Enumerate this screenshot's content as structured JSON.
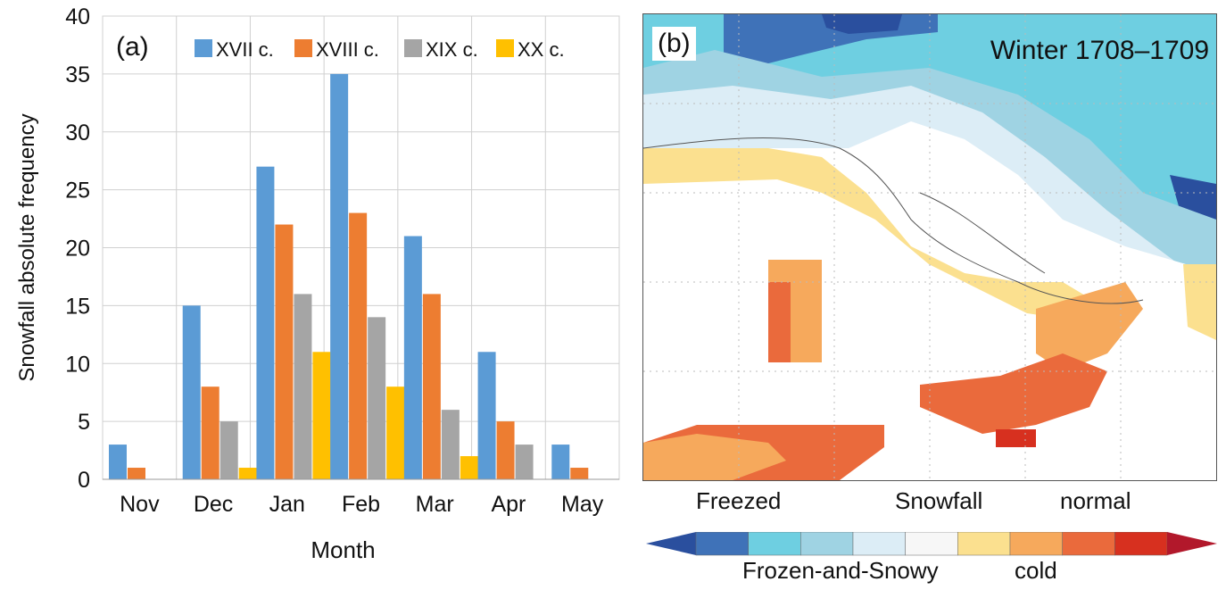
{
  "chart_data": [
    {
      "type": "bar",
      "panel_label": "(a)",
      "title": "",
      "xlabel": "Month",
      "ylabel": "Snowfall absolute frequency",
      "categories": [
        "Nov",
        "Dec",
        "Jan",
        "Feb",
        "Mar",
        "Apr",
        "May"
      ],
      "ylim": [
        0,
        40
      ],
      "yticks": [
        0,
        5,
        10,
        15,
        20,
        25,
        30,
        35,
        40
      ],
      "grid": true,
      "legend_position": "top",
      "series": [
        {
          "name": "XVII c.",
          "color": "#5b9bd5",
          "values": [
            3,
            15,
            27,
            35,
            21,
            11,
            3
          ]
        },
        {
          "name": "XVIII c.",
          "color": "#ed7d31",
          "values": [
            1,
            8,
            22,
            23,
            16,
            5,
            1
          ]
        },
        {
          "name": "XIX c.",
          "color": "#a5a5a5",
          "values": [
            0,
            5,
            16,
            14,
            6,
            3,
            0
          ]
        },
        {
          "name": "XX c.",
          "color": "#ffc000",
          "values": [
            0,
            1,
            11,
            8,
            2,
            0,
            0
          ]
        }
      ]
    },
    {
      "type": "heatmap",
      "panel_label": "(b)",
      "title": "Winter 1708–1709",
      "labels_above_colorbar": [
        "Freezed",
        "Snowfall",
        "normal"
      ],
      "labels_below_colorbar": [
        "Frozen-and-Snowy",
        "cold"
      ],
      "colorbar_colors": [
        "#2a4f9e",
        "#3f72b8",
        "#6ecfe1",
        "#9fd3e3",
        "#dcedf6",
        "#f7f7f7",
        "#fbe08f",
        "#f6a95c",
        "#ea6a3c",
        "#d7301f",
        "#b2182b"
      ]
    }
  ]
}
